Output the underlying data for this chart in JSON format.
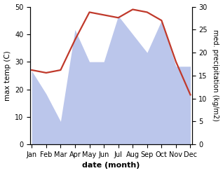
{
  "months": [
    "Jan",
    "Feb",
    "Mar",
    "Apr",
    "May",
    "Jun",
    "Jul",
    "Aug",
    "Sep",
    "Oct",
    "Nov",
    "Dec"
  ],
  "temperature": [
    27.0,
    26.0,
    27.0,
    38.0,
    48.0,
    47.0,
    46.0,
    49.0,
    48.0,
    45.0,
    30.0,
    18.0
  ],
  "precipitation": [
    16.0,
    11.0,
    5.0,
    25.0,
    18.0,
    18.0,
    28.0,
    24.0,
    20.0,
    27.0,
    17.0,
    17.0
  ],
  "temp_ylim": [
    0,
    50
  ],
  "precip_ylim": [
    0,
    30
  ],
  "temp_color": "#c0392b",
  "precip_fill_color": "#b0bce8",
  "xlabel": "date (month)",
  "ylabel_left": "max temp (C)",
  "ylabel_right": "med. precipitation (kg/m2)",
  "temp_yticks": [
    0,
    10,
    20,
    30,
    40,
    50
  ],
  "precip_yticks": [
    0,
    5,
    10,
    15,
    20,
    25,
    30
  ],
  "figsize": [
    3.18,
    2.47
  ],
  "dpi": 100,
  "line_width": 1.6
}
